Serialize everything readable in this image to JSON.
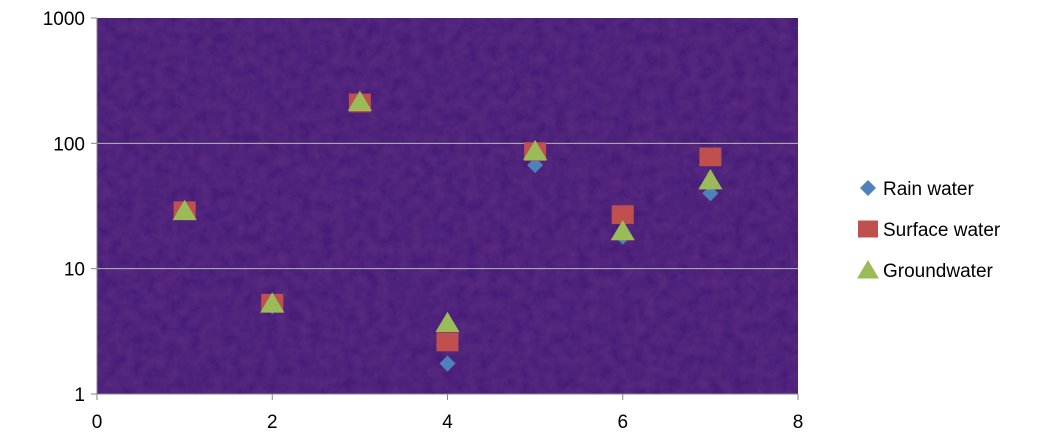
{
  "chart_data": {
    "type": "scatter",
    "title": "",
    "xlabel": "",
    "ylabel": "",
    "xlim": [
      0,
      8
    ],
    "ylim": [
      1,
      1000
    ],
    "yscale": "log",
    "x_ticks": [
      0,
      2,
      4,
      6,
      8
    ],
    "y_ticks": [
      1,
      10,
      100,
      1000
    ],
    "x_tick_labels": [
      "0",
      "2",
      "4",
      "6",
      "8"
    ],
    "y_tick_labels": [
      "1",
      "10",
      "100",
      "1000"
    ],
    "grid": "horizontal major gridlines",
    "legend_position": "right",
    "plot_background": "#4a1f7a",
    "series": [
      {
        "name": "Rain water",
        "marker": "diamond",
        "color": "#4f81bd",
        "x": [
          1,
          2,
          3,
          4,
          5,
          6,
          7
        ],
        "y": [
          29,
          5,
          210,
          1.75,
          67,
          18,
          40
        ]
      },
      {
        "name": "Surface water",
        "marker": "square",
        "color": "#c0504d",
        "x": [
          1,
          2,
          3,
          4,
          5,
          6,
          7
        ],
        "y": [
          29,
          5.3,
          210,
          2.6,
          86,
          27,
          78
        ]
      },
      {
        "name": "Groundwater",
        "marker": "triangle",
        "color": "#9bbb59",
        "x": [
          1,
          2,
          3,
          4,
          5,
          6,
          7
        ],
        "y": [
          29,
          5.3,
          215,
          3.7,
          87,
          20,
          51
        ]
      }
    ]
  }
}
